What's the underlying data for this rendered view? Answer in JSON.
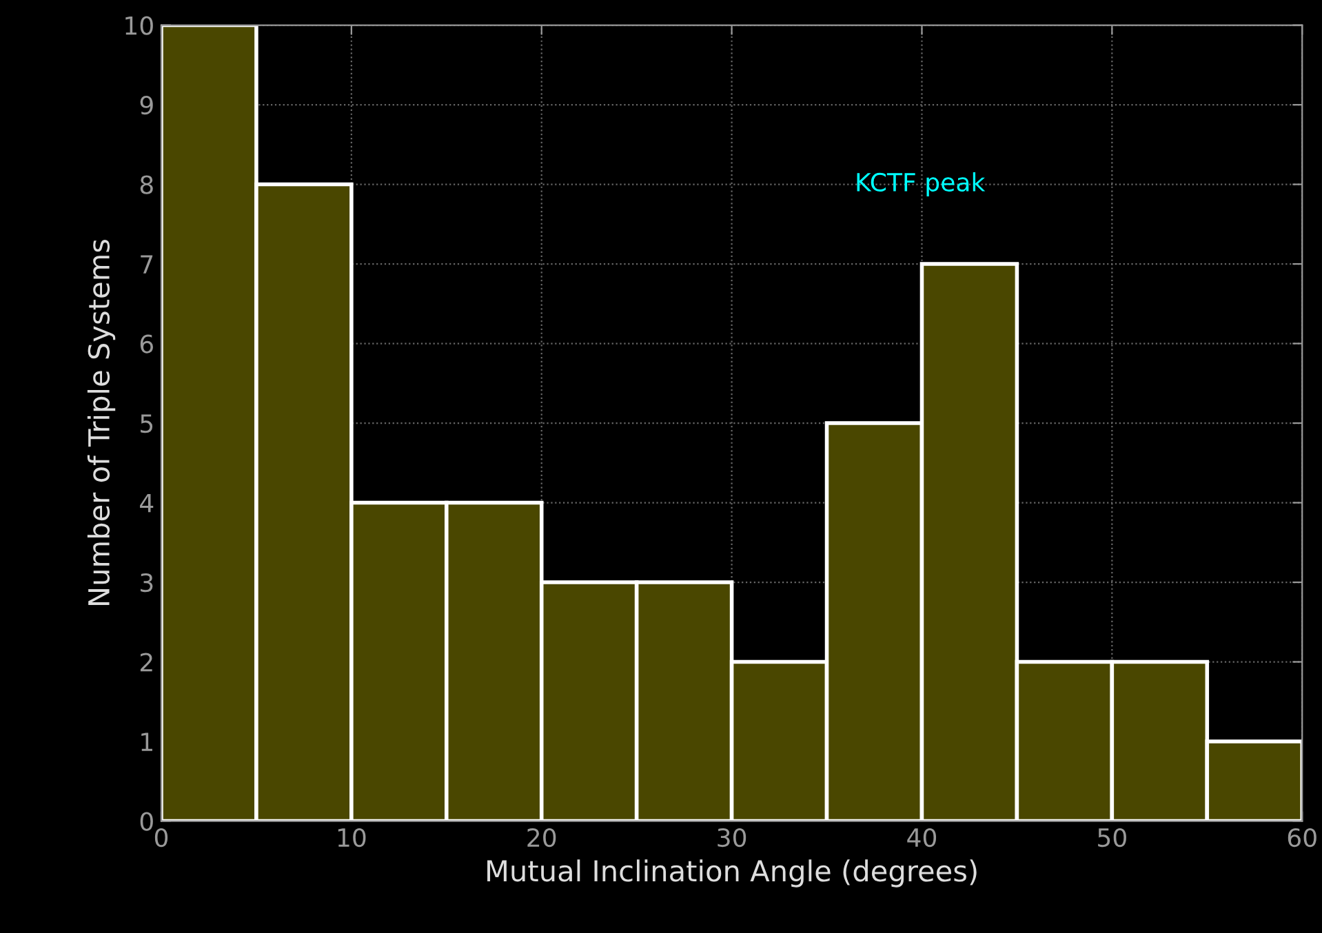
{
  "chart_data": {
    "type": "histogram",
    "xlabel": "Mutual Inclination Angle (degrees)",
    "ylabel": "Number of Triple Systems",
    "bins": [
      0,
      5,
      10,
      15,
      20,
      25,
      30,
      35,
      40,
      45,
      50,
      55,
      60
    ],
    "values": [
      10,
      8,
      4,
      4,
      3,
      3,
      2,
      5,
      7,
      2,
      2,
      1
    ],
    "color": "#4a4700",
    "xlim": [
      0,
      60
    ],
    "xticks": [
      0,
      10,
      20,
      30,
      40,
      50,
      60
    ],
    "ylim": [
      0,
      10
    ],
    "yticks": [
      0,
      1,
      2,
      3,
      4,
      5,
      6,
      7,
      8,
      9,
      10
    ],
    "grid": true,
    "annotations": [
      "KCTF peak"
    ]
  }
}
